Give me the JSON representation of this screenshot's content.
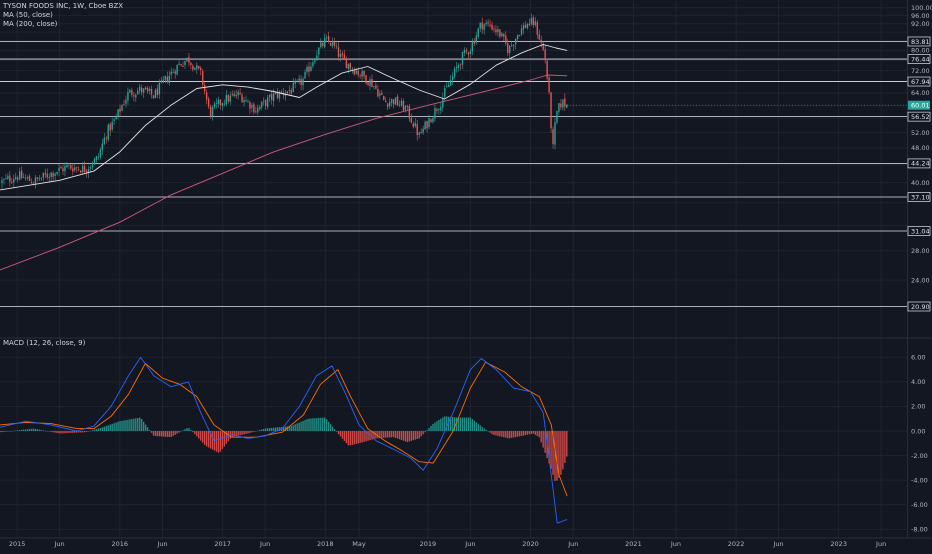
{
  "header": {
    "symbol": "TYSON FOODS INC, 1W, Cboe BZX",
    "ma50_label": "MA (50, close)",
    "ma200_label": "MA (200, close)",
    "macd_label": "MACD (12, 26, close, 9)"
  },
  "colors": {
    "background": "#131722",
    "grid": "#1f2330",
    "up": "#26a69a",
    "down": "#ef5350",
    "ma50": "#e6e6e6",
    "ma200": "#d05a7a",
    "macd_line": "#2962ff",
    "signal_line": "#ff6d00",
    "hist_up": "#26a69a",
    "hist_down": "#ef5350",
    "current_price_tag": "#26a69a"
  },
  "chart_data": [
    {
      "type": "candlestick",
      "title": "TYSON FOODS INC, 1W, Cboe BZX",
      "timeframe": "1W",
      "x_range": [
        "2014-11-01",
        "2023-09-01"
      ],
      "ylim": [
        18,
        102
      ],
      "y_ticks": [
        24,
        28,
        32,
        36,
        40,
        44,
        48,
        52,
        56,
        60,
        64,
        68,
        72,
        76,
        80,
        84,
        88,
        92,
        96,
        100
      ],
      "y_tick_labels": [
        "24.00",
        "28.00",
        "",
        "",
        "40.00",
        "",
        "48.00",
        "52.00",
        "",
        "",
        "64.00",
        "",
        "72.00",
        "",
        "80.00",
        "",
        "",
        "92.00",
        "96.00",
        "100.00"
      ],
      "x_tick_labels": [
        {
          "label": "2015",
          "date": "2015-01-01"
        },
        {
          "label": "Jun",
          "date": "2015-06-01"
        },
        {
          "label": "2016",
          "date": "2016-01-01"
        },
        {
          "label": "Jun",
          "date": "2016-06-01"
        },
        {
          "label": "2017",
          "date": "2017-01-01"
        },
        {
          "label": "Jun",
          "date": "2017-06-01"
        },
        {
          "label": "2018",
          "date": "2018-01-01"
        },
        {
          "label": "May",
          "date": "2018-05-01"
        },
        {
          "label": "2019",
          "date": "2019-01-01"
        },
        {
          "label": "Jun",
          "date": "2019-06-01"
        },
        {
          "label": "2020",
          "date": "2020-01-01"
        },
        {
          "label": "Jun",
          "date": "2020-06-01"
        },
        {
          "label": "2021",
          "date": "2021-01-01"
        },
        {
          "label": "Jun",
          "date": "2021-06-01"
        },
        {
          "label": "2022",
          "date": "2022-01-01"
        },
        {
          "label": "Jun",
          "date": "2022-06-01"
        },
        {
          "label": "2023",
          "date": "2023-01-01"
        },
        {
          "label": "Jun",
          "date": "2023-06-01"
        }
      ],
      "price_path": [
        [
          "2014-11-01",
          40.0
        ],
        [
          "2015-01-01",
          41.5
        ],
        [
          "2015-03-01",
          40.2
        ],
        [
          "2015-05-01",
          42.0
        ],
        [
          "2015-07-01",
          43.5
        ],
        [
          "2015-09-01",
          43.0
        ],
        [
          "2015-10-15",
          45.5
        ],
        [
          "2015-11-15",
          52.0
        ],
        [
          "2015-12-15",
          55.5
        ],
        [
          "2016-02-01",
          64.0
        ],
        [
          "2016-03-15",
          65.0
        ],
        [
          "2016-05-01",
          63.0
        ],
        [
          "2016-06-15",
          69.0
        ],
        [
          "2016-08-01",
          74.5
        ],
        [
          "2016-09-01",
          76.5
        ],
        [
          "2016-10-15",
          70.5
        ],
        [
          "2016-11-15",
          57.5
        ],
        [
          "2017-01-01",
          61.5
        ],
        [
          "2017-03-01",
          63.5
        ],
        [
          "2017-05-01",
          58.5
        ],
        [
          "2017-07-01",
          63.0
        ],
        [
          "2017-09-01",
          65.0
        ],
        [
          "2017-10-15",
          68.5
        ],
        [
          "2017-12-01",
          79.0
        ],
        [
          "2018-01-01",
          84.0
        ],
        [
          "2018-01-25",
          83.0
        ],
        [
          "2018-02-25",
          77.0
        ],
        [
          "2018-04-01",
          73.5
        ],
        [
          "2018-05-15",
          70.0
        ],
        [
          "2018-06-15",
          67.5
        ],
        [
          "2018-08-01",
          61.0
        ],
        [
          "2018-09-01",
          61.5
        ],
        [
          "2018-10-15",
          59.0
        ],
        [
          "2018-12-01",
          51.0
        ],
        [
          "2019-01-01",
          55.0
        ],
        [
          "2019-02-15",
          61.0
        ],
        [
          "2019-04-01",
          70.0
        ],
        [
          "2019-05-01",
          77.0
        ],
        [
          "2019-06-01",
          81.0
        ],
        [
          "2019-07-10",
          92.0
        ],
        [
          "2019-08-15",
          91.0
        ],
        [
          "2019-09-15",
          87.0
        ],
        [
          "2019-10-15",
          80.0
        ],
        [
          "2019-11-20",
          88.0
        ],
        [
          "2019-12-20",
          92.0
        ],
        [
          "2020-01-15",
          92.5
        ],
        [
          "2020-02-05",
          84.0
        ],
        [
          "2020-02-20",
          78.0
        ],
        [
          "2020-03-05",
          65.0
        ],
        [
          "2020-03-20",
          47.0
        ],
        [
          "2020-04-01",
          57.0
        ],
        [
          "2020-04-20",
          61.0
        ],
        [
          "2020-05-10",
          60.0
        ]
      ],
      "ma50_path": [
        [
          "2014-11-01",
          38.5
        ],
        [
          "2015-06-01",
          40.5
        ],
        [
          "2015-10-01",
          42.5
        ],
        [
          "2016-01-01",
          47.0
        ],
        [
          "2016-04-01",
          54.0
        ],
        [
          "2016-07-01",
          60.0
        ],
        [
          "2016-10-01",
          65.5
        ],
        [
          "2017-01-01",
          66.8
        ],
        [
          "2017-04-01",
          66.0
        ],
        [
          "2017-07-01",
          64.5
        ],
        [
          "2017-10-01",
          62.5
        ],
        [
          "2017-12-01",
          66.0
        ],
        [
          "2018-03-01",
          71.0
        ],
        [
          "2018-06-01",
          73.5
        ],
        [
          "2018-09-01",
          69.0
        ],
        [
          "2018-12-01",
          65.0
        ],
        [
          "2019-03-01",
          62.0
        ],
        [
          "2019-06-01",
          67.0
        ],
        [
          "2019-09-01",
          74.0
        ],
        [
          "2019-12-01",
          79.0
        ],
        [
          "2020-02-15",
          82.5
        ],
        [
          "2020-04-01",
          81.0
        ],
        [
          "2020-05-10",
          80.0
        ]
      ],
      "ma200_path": [
        [
          "2014-11-01",
          25.3
        ],
        [
          "2015-06-01",
          28.5
        ],
        [
          "2016-01-01",
          32.5
        ],
        [
          "2016-07-01",
          37.5
        ],
        [
          "2017-01-01",
          42.0
        ],
        [
          "2017-07-01",
          47.0
        ],
        [
          "2018-01-01",
          51.5
        ],
        [
          "2018-07-01",
          56.0
        ],
        [
          "2019-01-01",
          60.0
        ],
        [
          "2019-07-01",
          64.0
        ],
        [
          "2020-01-01",
          68.5
        ],
        [
          "2020-03-01",
          70.3
        ],
        [
          "2020-05-10",
          70.0
        ]
      ],
      "horizontal_levels": [
        {
          "value": 83.81,
          "label": "83.81"
        },
        {
          "value": 76.44,
          "label": "76.44"
        },
        {
          "value": 67.94,
          "label": "67.94"
        },
        {
          "value": 56.52,
          "label": "56.52"
        },
        {
          "value": 44.24,
          "label": "44.24"
        },
        {
          "value": 37.1,
          "label": "37.10"
        },
        {
          "value": 31.04,
          "label": "31.04"
        },
        {
          "value": 20.9,
          "label": "20.90"
        }
      ],
      "current_price": {
        "value": 60.01,
        "label": "60.01"
      },
      "grid": true,
      "scale": "log"
    },
    {
      "type": "macd",
      "title": "MACD (12, 26, close, 9)",
      "ylim": [
        -8.3,
        7.0
      ],
      "y_ticks": [
        6,
        4,
        2,
        0,
        -2,
        -4,
        -6,
        -8
      ],
      "y_tick_labels": [
        "6.00",
        "4.00",
        "2.00",
        "0.00",
        "-2.00",
        "-4.00",
        "-6.00",
        "-8.00"
      ],
      "macd_path": [
        [
          "2014-11-01",
          0.3
        ],
        [
          "2015-02-01",
          0.8
        ],
        [
          "2015-05-01",
          0.5
        ],
        [
          "2015-08-01",
          0.0
        ],
        [
          "2015-10-01",
          0.4
        ],
        [
          "2015-12-01",
          2.0
        ],
        [
          "2016-02-01",
          4.5
        ],
        [
          "2016-03-15",
          6.0
        ],
        [
          "2016-05-01",
          4.5
        ],
        [
          "2016-07-01",
          3.6
        ],
        [
          "2016-09-01",
          4.0
        ],
        [
          "2016-10-15",
          1.5
        ],
        [
          "2016-12-01",
          -0.8
        ],
        [
          "2017-02-01",
          -0.3
        ],
        [
          "2017-04-01",
          -0.6
        ],
        [
          "2017-06-01",
          -0.4
        ],
        [
          "2017-08-01",
          0.2
        ],
        [
          "2017-10-01",
          2.0
        ],
        [
          "2017-12-01",
          4.5
        ],
        [
          "2018-01-25",
          5.3
        ],
        [
          "2018-03-15",
          3.0
        ],
        [
          "2018-05-01",
          0.5
        ],
        [
          "2018-07-01",
          -0.8
        ],
        [
          "2018-09-01",
          -1.5
        ],
        [
          "2018-11-01",
          -2.2
        ],
        [
          "2018-12-15",
          -3.2
        ],
        [
          "2019-02-01",
          -1.5
        ],
        [
          "2019-04-01",
          1.5
        ],
        [
          "2019-06-01",
          5.0
        ],
        [
          "2019-07-10",
          5.9
        ],
        [
          "2019-09-01",
          5.0
        ],
        [
          "2019-11-01",
          3.5
        ],
        [
          "2020-01-01",
          3.2
        ],
        [
          "2020-02-15",
          1.5
        ],
        [
          "2020-03-20",
          -4.5
        ],
        [
          "2020-04-05",
          -7.5
        ],
        [
          "2020-05-10",
          -7.2
        ]
      ],
      "signal_path": [
        [
          "2014-11-01",
          0.5
        ],
        [
          "2015-02-01",
          0.7
        ],
        [
          "2015-05-01",
          0.6
        ],
        [
          "2015-08-01",
          0.2
        ],
        [
          "2015-10-01",
          0.2
        ],
        [
          "2015-12-01",
          1.2
        ],
        [
          "2016-02-01",
          3.0
        ],
        [
          "2016-04-01",
          5.5
        ],
        [
          "2016-06-01",
          4.3
        ],
        [
          "2016-08-01",
          3.8
        ],
        [
          "2016-10-01",
          2.8
        ],
        [
          "2016-12-01",
          0.5
        ],
        [
          "2017-02-01",
          -0.5
        ],
        [
          "2017-05-01",
          -0.5
        ],
        [
          "2017-08-01",
          -0.1
        ],
        [
          "2017-10-15",
          1.3
        ],
        [
          "2017-12-15",
          3.8
        ],
        [
          "2018-02-15",
          5.0
        ],
        [
          "2018-04-01",
          2.8
        ],
        [
          "2018-06-01",
          0.2
        ],
        [
          "2018-08-01",
          -0.8
        ],
        [
          "2018-10-01",
          -1.6
        ],
        [
          "2018-12-01",
          -2.5
        ],
        [
          "2019-01-20",
          -2.6
        ],
        [
          "2019-04-01",
          0.0
        ],
        [
          "2019-06-01",
          3.5
        ],
        [
          "2019-07-25",
          5.6
        ],
        [
          "2019-10-01",
          4.8
        ],
        [
          "2019-12-01",
          3.6
        ],
        [
          "2020-02-01",
          2.8
        ],
        [
          "2020-03-15",
          0.5
        ],
        [
          "2020-04-10",
          -3.5
        ],
        [
          "2020-05-10",
          -5.3
        ]
      ],
      "histogram_path": [
        [
          "2014-11-01",
          -0.1
        ],
        [
          "2015-03-01",
          0.2
        ],
        [
          "2015-06-01",
          -0.2
        ],
        [
          "2015-09-01",
          -0.1
        ],
        [
          "2015-11-01",
          0.3
        ],
        [
          "2016-01-01",
          0.8
        ],
        [
          "2016-03-15",
          1.1
        ],
        [
          "2016-05-01",
          -0.4
        ],
        [
          "2016-07-01",
          -0.5
        ],
        [
          "2016-09-01",
          0.3
        ],
        [
          "2016-11-01",
          -1.2
        ],
        [
          "2016-12-20",
          -1.8
        ],
        [
          "2017-02-01",
          -0.5
        ],
        [
          "2017-04-01",
          -0.2
        ],
        [
          "2017-06-01",
          0.2
        ],
        [
          "2017-09-01",
          0.4
        ],
        [
          "2017-11-01",
          1.0
        ],
        [
          "2018-01-01",
          1.1
        ],
        [
          "2018-02-15",
          -0.2
        ],
        [
          "2018-03-25",
          -1.2
        ],
        [
          "2018-05-01",
          -1.0
        ],
        [
          "2018-07-01",
          -0.6
        ],
        [
          "2018-09-01",
          -0.5
        ],
        [
          "2018-10-20",
          -0.9
        ],
        [
          "2018-12-01",
          -0.6
        ],
        [
          "2019-01-20",
          0.6
        ],
        [
          "2019-03-01",
          1.2
        ],
        [
          "2019-04-15",
          1.1
        ],
        [
          "2019-06-01",
          1.1
        ],
        [
          "2019-07-15",
          0.3
        ],
        [
          "2019-08-20",
          -0.3
        ],
        [
          "2019-10-15",
          -0.6
        ],
        [
          "2019-12-01",
          -0.4
        ],
        [
          "2020-01-10",
          -0.2
        ],
        [
          "2020-02-01",
          -0.5
        ],
        [
          "2020-03-10",
          -2.8
        ],
        [
          "2020-03-30",
          -4.2
        ],
        [
          "2020-04-20",
          -3.5
        ],
        [
          "2020-05-10",
          -2.0
        ]
      ]
    }
  ]
}
